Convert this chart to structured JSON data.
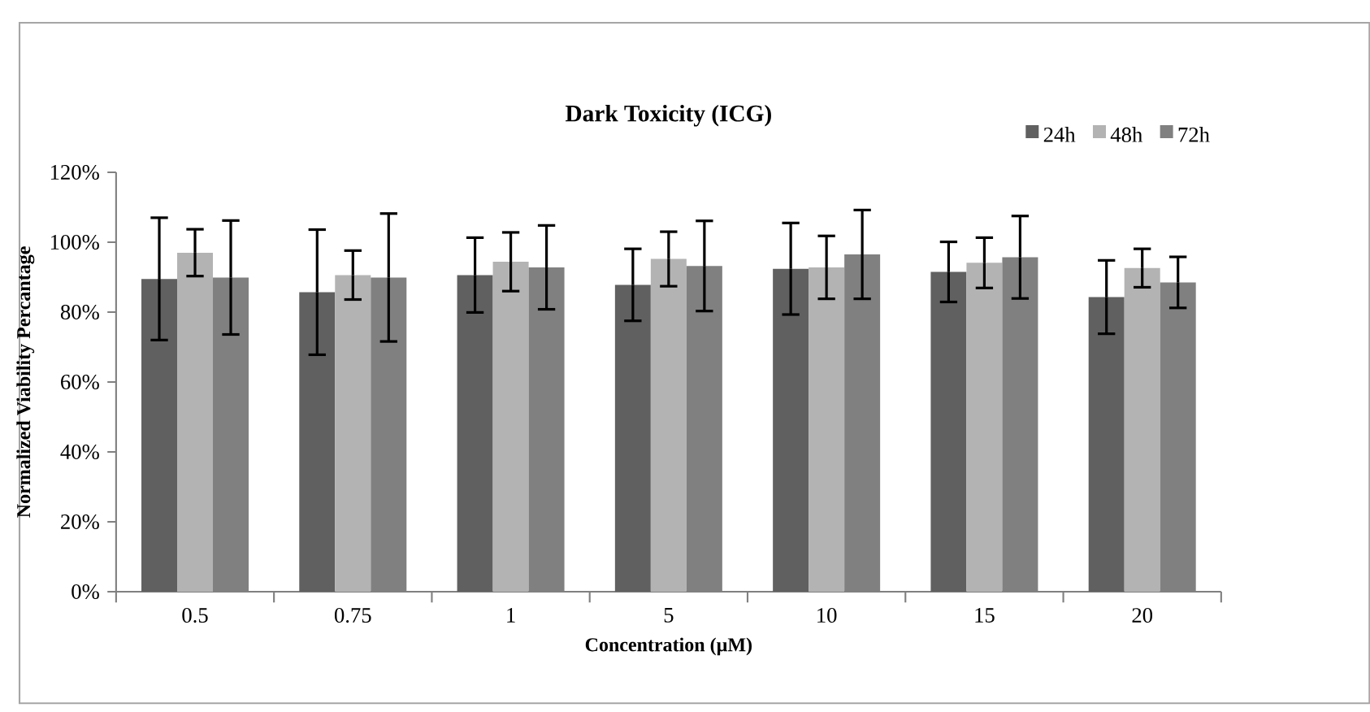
{
  "chart_data": {
    "type": "bar",
    "title": "Dark Toxicity (ICG)",
    "xlabel": "Concentration (µM)",
    "ylabel": "Normalized Viability Percantage",
    "categories": [
      "0.5",
      "0.75",
      "1",
      "5",
      "10",
      "15",
      "20"
    ],
    "series": [
      {
        "name": "24h",
        "color": "#606060",
        "values": [
          89.5,
          85.7,
          90.6,
          87.8,
          92.4,
          91.5,
          84.3
        ],
        "errors": [
          17.5,
          17.9,
          10.7,
          10.3,
          13.1,
          8.6,
          10.5
        ]
      },
      {
        "name": "48h",
        "color": "#b3b3b3",
        "values": [
          97,
          90.6,
          94.4,
          95.2,
          92.8,
          94.1,
          92.6
        ],
        "errors": [
          6.7,
          7,
          8.4,
          7.8,
          9,
          7.2,
          5.5
        ]
      },
      {
        "name": "72h",
        "color": "#808080",
        "values": [
          89.9,
          89.9,
          92.8,
          93.2,
          96.5,
          95.7,
          88.5
        ],
        "errors": [
          16.3,
          18.3,
          12,
          12.9,
          12.7,
          11.8,
          7.3
        ]
      }
    ],
    "ylim": [
      0,
      120
    ],
    "yticks": [
      {
        "value": 0,
        "label": "0%"
      },
      {
        "value": 20,
        "label": "20%"
      },
      {
        "value": 40,
        "label": "40%"
      },
      {
        "value": 60,
        "label": "60%"
      },
      {
        "value": 80,
        "label": "80%"
      },
      {
        "value": 100,
        "label": "100%"
      },
      {
        "value": 120,
        "label": "120%"
      }
    ],
    "grid": false,
    "legend": "top right"
  }
}
